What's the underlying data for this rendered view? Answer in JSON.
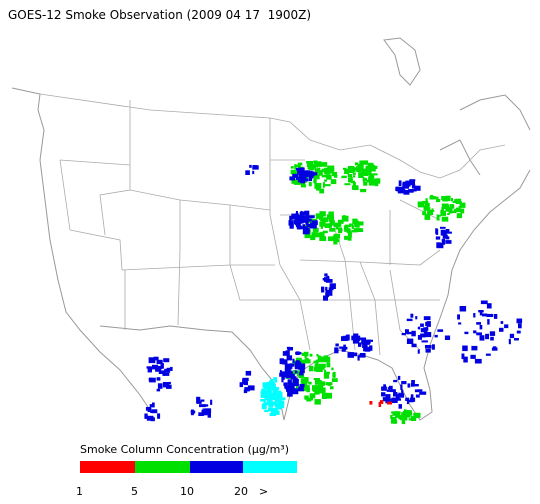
{
  "title": "GOES-12 Smoke Observation (2009 04 17  1900Z)",
  "legend": {
    "title": "Smoke Column Concentration (μg/m³)",
    "ticks": [
      1,
      5,
      10,
      20
    ],
    "overflow_label": ">",
    "colors": [
      "#ff0000",
      "#00e000",
      "#0000e0",
      "#00ffff"
    ]
  }
}
